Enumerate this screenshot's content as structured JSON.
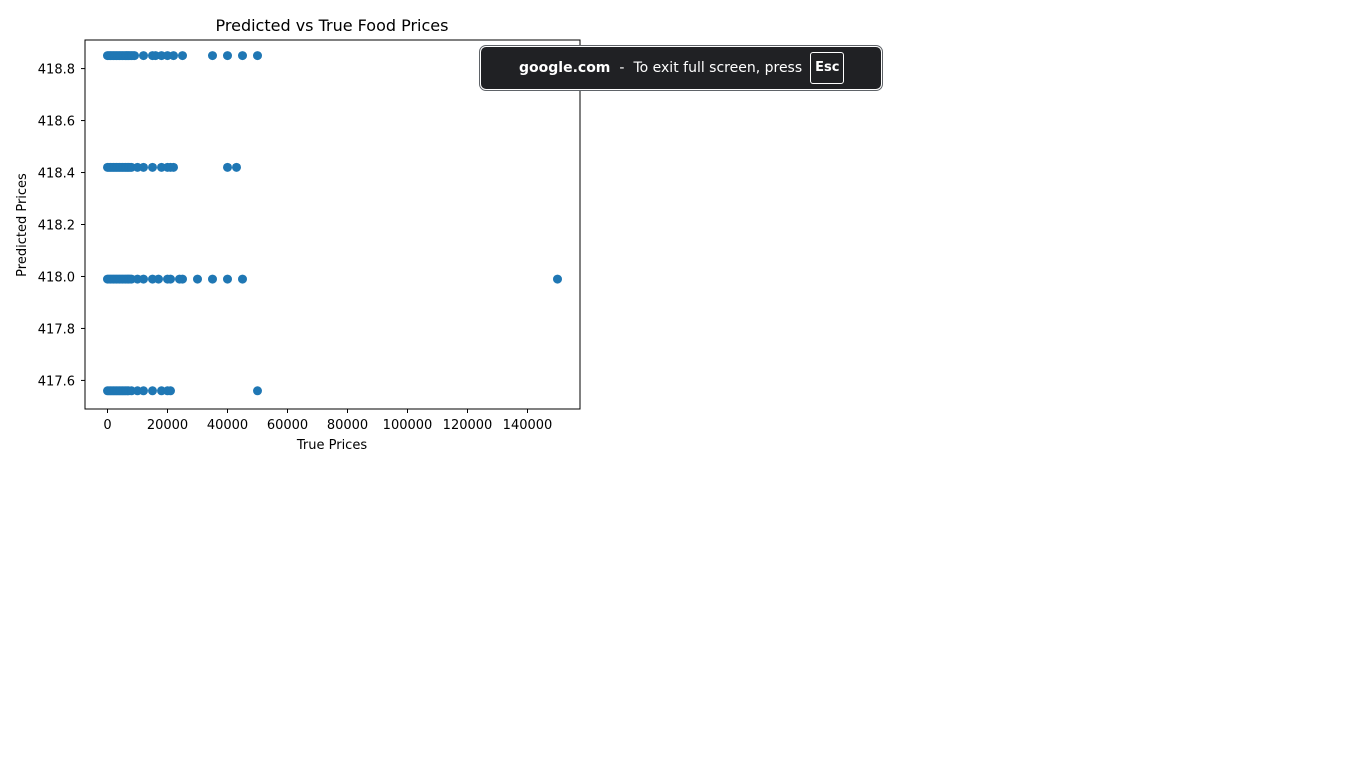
{
  "chart_data": {
    "type": "scatter",
    "title": "Predicted vs True Food Prices",
    "xlabel": "True Prices",
    "ylabel": "Predicted Prices",
    "xlim": [
      -7500,
      157500
    ],
    "ylim": [
      417.49,
      418.91
    ],
    "x_ticks": [
      0,
      20000,
      40000,
      60000,
      80000,
      100000,
      120000,
      140000
    ],
    "x_tick_labels": [
      "0",
      "20000",
      "40000",
      "60000",
      "80000",
      "100000",
      "120000",
      "140000"
    ],
    "y_ticks": [
      417.6,
      417.8,
      418.0,
      418.2,
      418.4,
      418.6,
      418.8
    ],
    "y_tick_labels": [
      "417.6",
      "417.8",
      "418.0",
      "418.2",
      "418.4",
      "418.6",
      "418.8"
    ],
    "grid": false,
    "color": "#1f77b4",
    "series": [
      {
        "points": [
          [
            0,
            418.85
          ],
          [
            500,
            418.85
          ],
          [
            1000,
            418.85
          ],
          [
            1500,
            418.85
          ],
          [
            2000,
            418.85
          ],
          [
            2500,
            418.85
          ],
          [
            3000,
            418.85
          ],
          [
            3500,
            418.85
          ],
          [
            4000,
            418.85
          ],
          [
            4500,
            418.85
          ],
          [
            5000,
            418.85
          ],
          [
            5500,
            418.85
          ],
          [
            6000,
            418.85
          ],
          [
            6500,
            418.85
          ],
          [
            7000,
            418.85
          ],
          [
            7500,
            418.85
          ],
          [
            8000,
            418.85
          ],
          [
            8500,
            418.85
          ],
          [
            9000,
            418.85
          ],
          [
            12000,
            418.85
          ],
          [
            15000,
            418.85
          ],
          [
            16000,
            418.85
          ],
          [
            18000,
            418.85
          ],
          [
            20000,
            418.85
          ],
          [
            22000,
            418.85
          ],
          [
            25000,
            418.85
          ],
          [
            35000,
            418.85
          ],
          [
            40000,
            418.85
          ],
          [
            45000,
            418.85
          ],
          [
            50000,
            418.85
          ],
          [
            0,
            418.42
          ],
          [
            500,
            418.42
          ],
          [
            1000,
            418.42
          ],
          [
            1500,
            418.42
          ],
          [
            2000,
            418.42
          ],
          [
            2500,
            418.42
          ],
          [
            3000,
            418.42
          ],
          [
            3500,
            418.42
          ],
          [
            4000,
            418.42
          ],
          [
            4500,
            418.42
          ],
          [
            5000,
            418.42
          ],
          [
            5500,
            418.42
          ],
          [
            6000,
            418.42
          ],
          [
            6500,
            418.42
          ],
          [
            7000,
            418.42
          ],
          [
            7500,
            418.42
          ],
          [
            8000,
            418.42
          ],
          [
            10000,
            418.42
          ],
          [
            12000,
            418.42
          ],
          [
            15000,
            418.42
          ],
          [
            18000,
            418.42
          ],
          [
            20000,
            418.42
          ],
          [
            21000,
            418.42
          ],
          [
            22000,
            418.42
          ],
          [
            40000,
            418.42
          ],
          [
            43000,
            418.42
          ],
          [
            0,
            417.99
          ],
          [
            500,
            417.99
          ],
          [
            1000,
            417.99
          ],
          [
            1500,
            417.99
          ],
          [
            2000,
            417.99
          ],
          [
            2500,
            417.99
          ],
          [
            3000,
            417.99
          ],
          [
            3500,
            417.99
          ],
          [
            4000,
            417.99
          ],
          [
            4500,
            417.99
          ],
          [
            5000,
            417.99
          ],
          [
            5500,
            417.99
          ],
          [
            6000,
            417.99
          ],
          [
            6500,
            417.99
          ],
          [
            7000,
            417.99
          ],
          [
            7500,
            417.99
          ],
          [
            8000,
            417.99
          ],
          [
            10000,
            417.99
          ],
          [
            12000,
            417.99
          ],
          [
            15000,
            417.99
          ],
          [
            17000,
            417.99
          ],
          [
            20000,
            417.99
          ],
          [
            21000,
            417.99
          ],
          [
            24000,
            417.99
          ],
          [
            25000,
            417.99
          ],
          [
            30000,
            417.99
          ],
          [
            35000,
            417.99
          ],
          [
            40000,
            417.99
          ],
          [
            45000,
            417.99
          ],
          [
            150000,
            417.99
          ],
          [
            0,
            417.56
          ],
          [
            500,
            417.56
          ],
          [
            1000,
            417.56
          ],
          [
            1500,
            417.56
          ],
          [
            2000,
            417.56
          ],
          [
            2500,
            417.56
          ],
          [
            3000,
            417.56
          ],
          [
            3500,
            417.56
          ],
          [
            4000,
            417.56
          ],
          [
            4500,
            417.56
          ],
          [
            5000,
            417.56
          ],
          [
            5500,
            417.56
          ],
          [
            6000,
            417.56
          ],
          [
            6500,
            417.56
          ],
          [
            7000,
            417.56
          ],
          [
            8000,
            417.56
          ],
          [
            10000,
            417.56
          ],
          [
            12000,
            417.56
          ],
          [
            15000,
            417.56
          ],
          [
            18000,
            417.56
          ],
          [
            20000,
            417.56
          ],
          [
            21000,
            417.56
          ],
          [
            50000,
            417.56
          ]
        ]
      }
    ]
  },
  "fullscreen_notice": {
    "domain": "google.com",
    "separator": "-",
    "message": "To exit full screen, press",
    "key": "Esc"
  }
}
